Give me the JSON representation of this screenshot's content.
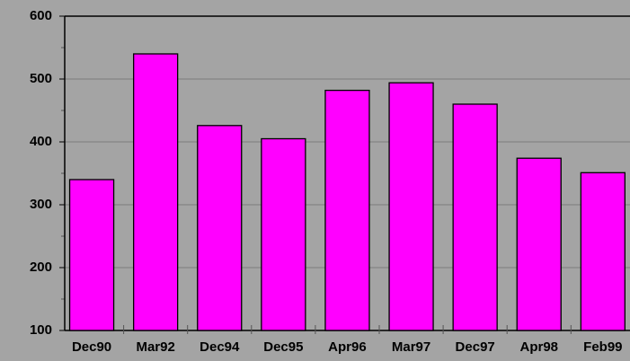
{
  "chart_data": {
    "type": "bar",
    "categories": [
      "Dec90",
      "Mar92",
      "Dec94",
      "Dec95",
      "Apr96",
      "Mar97",
      "Dec97",
      "Apr98",
      "Feb99"
    ],
    "values": [
      340,
      540,
      426,
      405,
      482,
      494,
      460,
      374,
      351
    ],
    "color": "#ff00ff",
    "ylim": [
      100,
      600
    ],
    "yticks": [
      100,
      200,
      300,
      400,
      500,
      600
    ],
    "grid": true
  }
}
